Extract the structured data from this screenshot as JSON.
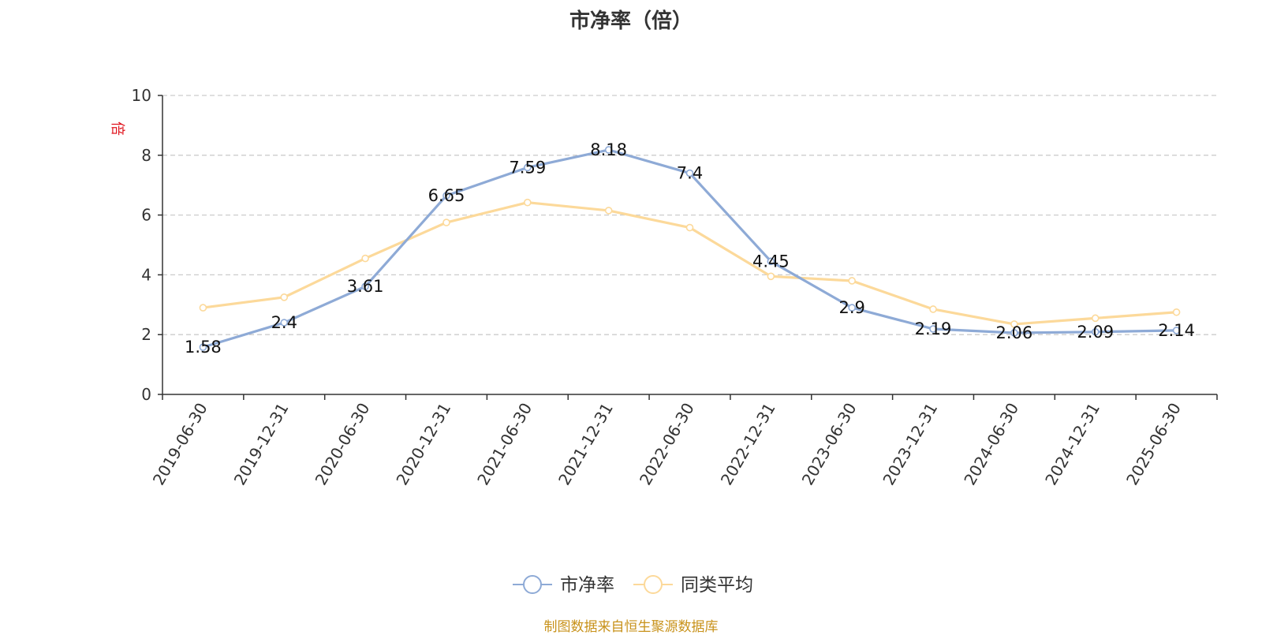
{
  "title": "市净率（倍）",
  "source": "制图数据来自恒生聚源数据库",
  "chart_data": {
    "type": "line",
    "ylabel": "倍",
    "ylim": [
      0,
      10
    ],
    "yticks": [
      0,
      2,
      4,
      6,
      8,
      10
    ],
    "categories": [
      "2019-06-30",
      "2019-12-31",
      "2020-06-30",
      "2020-12-31",
      "2021-06-30",
      "2021-12-31",
      "2022-06-30",
      "2022-12-31",
      "2023-06-30",
      "2023-12-31",
      "2024-06-30",
      "2024-12-31",
      "2025-06-30"
    ],
    "grid": "dashed horizontal",
    "legend_position": "bottom-center",
    "series": [
      {
        "name": "市净率",
        "color": "#8eaad6",
        "show_labels": true,
        "values": [
          1.58,
          2.4,
          3.61,
          6.65,
          7.59,
          8.18,
          7.4,
          4.45,
          2.9,
          2.19,
          2.06,
          2.09,
          2.14
        ]
      },
      {
        "name": "同类平均",
        "color": "#fcd99a",
        "show_labels": false,
        "values": [
          2.9,
          3.25,
          4.55,
          5.75,
          6.42,
          6.15,
          5.58,
          3.95,
          3.8,
          2.85,
          2.35,
          2.55,
          2.75
        ]
      }
    ]
  }
}
